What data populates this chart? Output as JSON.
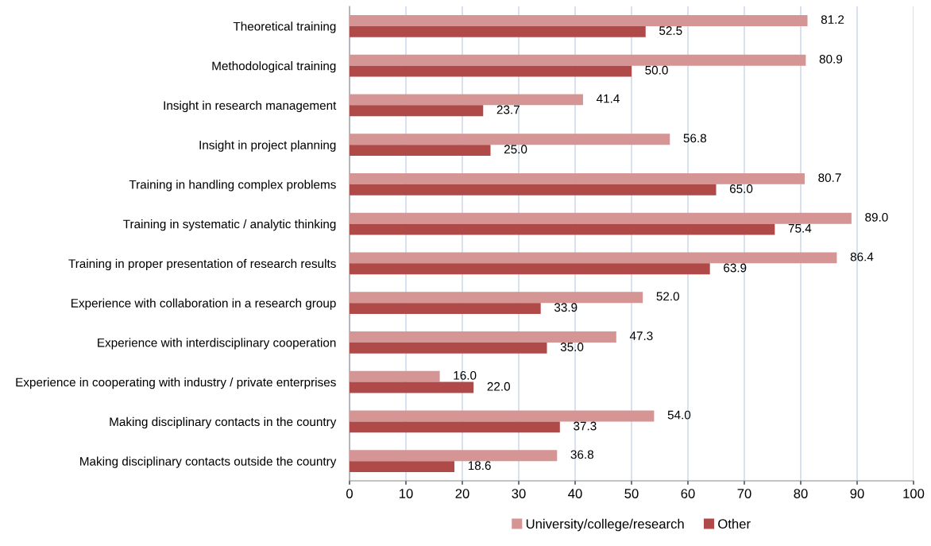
{
  "chart_data": {
    "type": "bar",
    "orientation": "horizontal",
    "categories": [
      "Theoretical training",
      "Methodological training",
      "Insight in research management",
      "Insight in project planning",
      "Training in handling complex problems",
      "Training in systematic / analytic thinking",
      "Training in proper presentation of research results",
      "Experience with collaboration in a research group",
      "Experience with interdisciplinary cooperation",
      "Experience in cooperating with industry / private enterprises",
      "Making disciplinary contacts in the country",
      "Making disciplinary contacts outside the country"
    ],
    "series": [
      {
        "name": "University/college/research",
        "color": "#d59594",
        "values": [
          81.2,
          80.9,
          41.4,
          56.8,
          80.7,
          89.0,
          86.4,
          52.0,
          47.3,
          16.0,
          54.0,
          36.8
        ],
        "value_labels": [
          "81.2",
          "80.9",
          "41.4",
          "56.8",
          "80.7",
          "89.0",
          "86.4",
          "52.0",
          "47.3",
          "16.0",
          "54.0",
          "36.8"
        ]
      },
      {
        "name": "Other",
        "color": "#b04a48",
        "values": [
          52.5,
          50.0,
          23.7,
          25.0,
          65.0,
          75.4,
          63.9,
          33.9,
          35.0,
          22.0,
          37.3,
          18.6
        ],
        "value_labels": [
          "52.5",
          "50.0",
          "23.7",
          "25.0",
          "65.0",
          "75.4",
          "63.9",
          "33.9",
          "35.0",
          "22.0",
          "37.3",
          "18.6"
        ]
      }
    ],
    "xlim": [
      0,
      100
    ],
    "xticks": [
      0,
      10,
      20,
      30,
      40,
      50,
      60,
      70,
      80,
      90,
      100
    ],
    "grid": "x",
    "legend": "bottom"
  }
}
